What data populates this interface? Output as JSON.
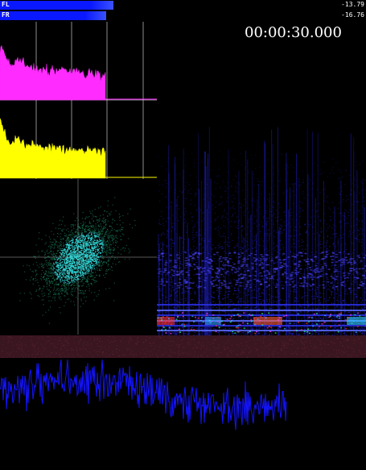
{
  "meters": [
    {
      "label": "FL",
      "value": "-13.79",
      "fill": 0.31,
      "color": "#0a18ff",
      "bright": "#3a52ff"
    },
    {
      "label": "FR",
      "value": "-16.76",
      "fill": 0.29,
      "color": "#0a18ff",
      "bright": "#3a52ff"
    }
  ],
  "timecode": "00:00:30.000",
  "colors": {
    "fl_spectrum": "#ff2bff",
    "fr_spectrum": "#ffff00",
    "vectorscope": "#33d6d6",
    "spectrogram": "#2020d0",
    "band": "#3a1620",
    "waveform": "#1414ff",
    "grid": "#ffffff"
  }
}
